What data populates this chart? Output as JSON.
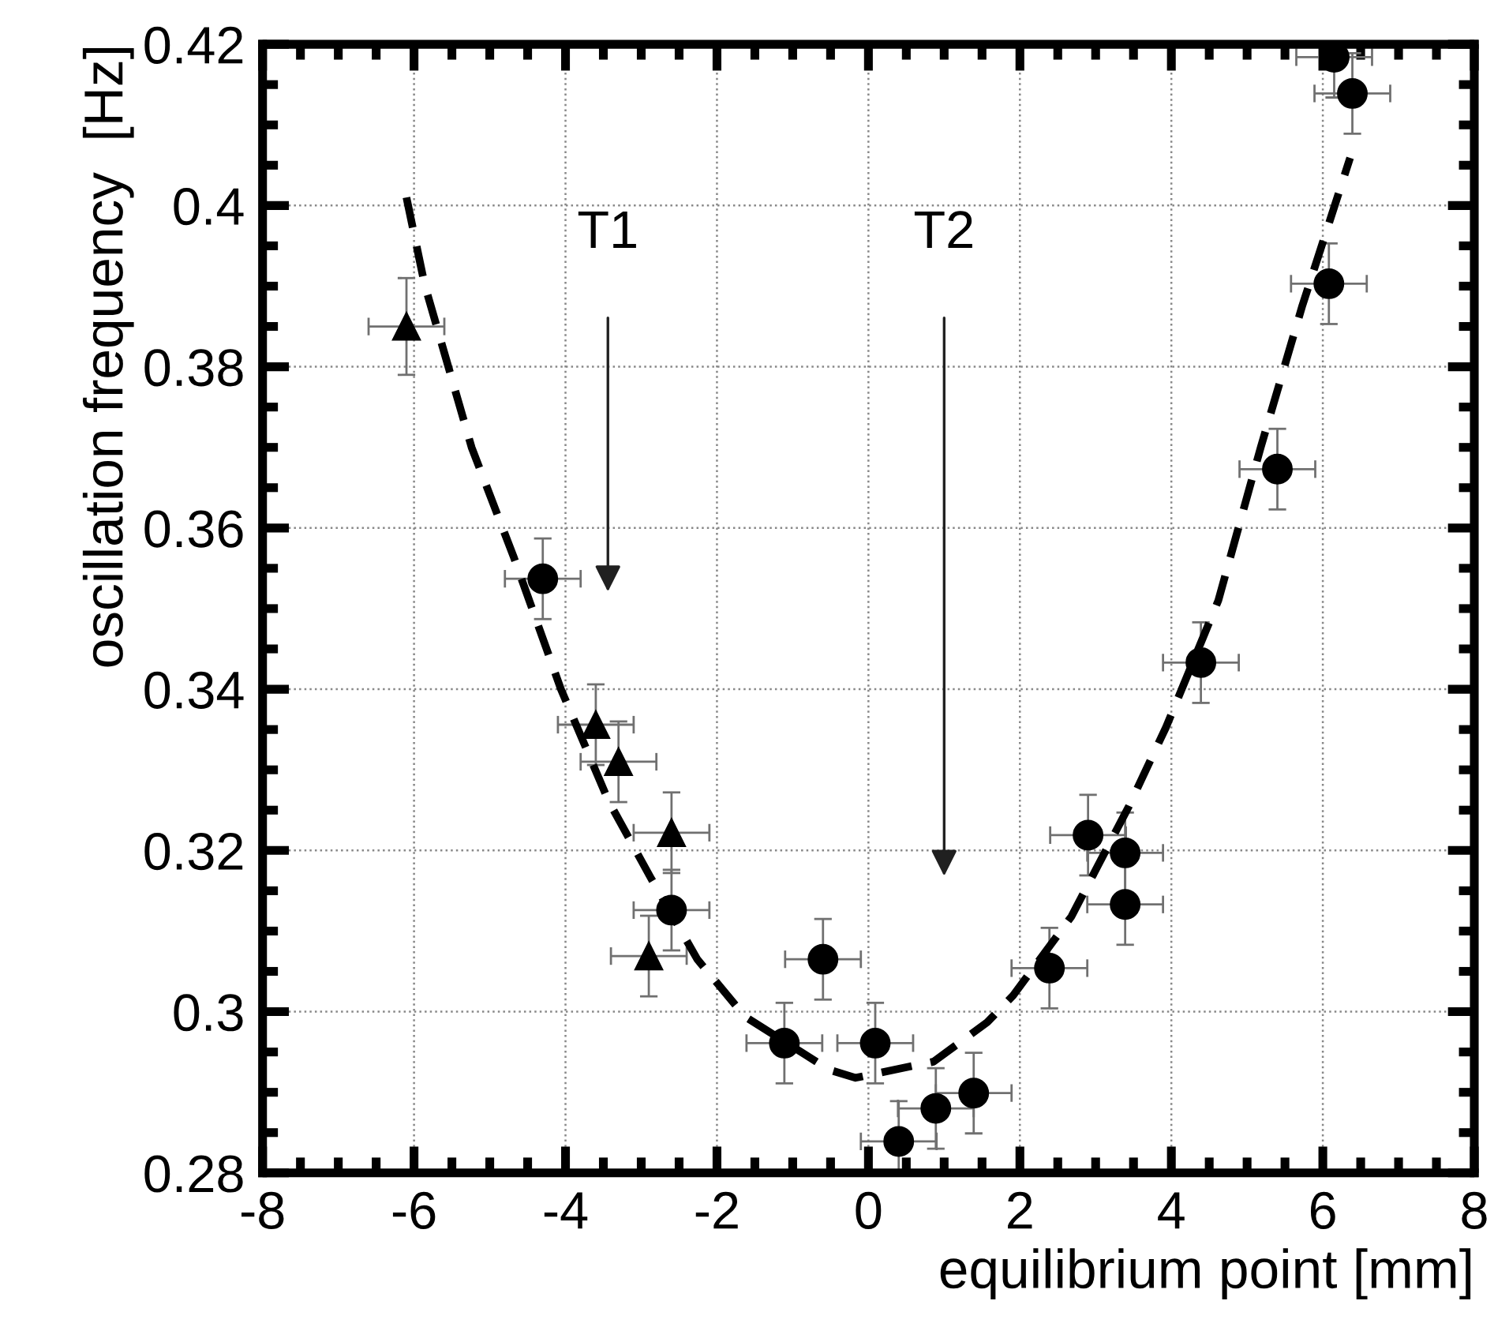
{
  "chart_data": {
    "type": "scatter",
    "xlabel": "equilibrium point [mm]",
    "ylabel": "oscillation frequency  [Hz]",
    "xlim": [
      -8,
      8
    ],
    "xticks": [
      -8,
      -6,
      -4,
      -2,
      0,
      2,
      4,
      6,
      8
    ],
    "ylim": [
      0.28,
      0.42
    ],
    "yticks": [
      0.28,
      {
        "value": 0.3,
        "label": "0.3"
      },
      0.32,
      0.34,
      0.36,
      0.38,
      {
        "value": 0.4,
        "label": "0.4"
      },
      0.42
    ],
    "grid": true,
    "series": [
      {
        "marker": "triangle",
        "color": "#000000",
        "x": [
          -6.1,
          -3.6,
          -3.3,
          -2.6,
          -2.9
        ],
        "values": [
          0.385,
          0.3356,
          0.331,
          0.3222,
          0.3069
        ],
        "errors": [
          0.006,
          0.005,
          0.005,
          0.005,
          0.005
        ],
        "xerrors": [
          0.5,
          0.5,
          0.5,
          0.5,
          0.5
        ]
      },
      {
        "marker": "circle",
        "color": "#000000",
        "x": [
          -4.3,
          -2.6,
          -0.6,
          -1.11,
          0.09,
          0.4,
          0.89,
          1.39,
          2.39,
          2.9,
          3.39,
          3.39,
          4.39,
          5.4,
          6.08,
          6.15,
          6.39
        ],
        "values": [
          0.3537,
          0.3126,
          0.3065,
          0.2961,
          0.2961,
          0.2839,
          0.288,
          0.2899,
          0.3054,
          0.3219,
          0.3197,
          0.3133,
          0.3433,
          0.3673,
          0.3903,
          0.4184,
          0.4139
        ],
        "errors": [
          0.005,
          0.005,
          0.005,
          0.005,
          0.005,
          0.005,
          0.005,
          0.005,
          0.005,
          0.005,
          0.005,
          0.005,
          0.005,
          0.005,
          0.005,
          0.005,
          0.005
        ],
        "xerrors": [
          0.5,
          0.5,
          0.5,
          0.5,
          0.5,
          0.5,
          0.5,
          0.5,
          0.5,
          0.5,
          0.5,
          0.5,
          0.5,
          0.5,
          0.5,
          0.5,
          0.5
        ]
      },
      {
        "type": "line",
        "marker": "none",
        "line_style": "dashed",
        "color": "#000000",
        "x": [
          -6.1,
          -5.86,
          -5.24,
          -4.68,
          -4.06,
          -3.43,
          -2.88,
          -2.26,
          -1.63,
          -0.52,
          -0.17,
          0.86,
          1.57,
          1.91,
          2.68,
          3.44,
          3.93,
          4.62,
          5.18,
          5.73,
          6.36
        ],
        "values": [
          0.401,
          0.3902,
          0.37,
          0.3563,
          0.34,
          0.3261,
          0.3167,
          0.3065,
          0.2994,
          0.2928,
          0.2918,
          0.2938,
          0.2987,
          0.302,
          0.3118,
          0.3255,
          0.3353,
          0.351,
          0.37,
          0.3876,
          0.4059
        ]
      }
    ],
    "annotations": [
      "T1",
      "T2"
    ]
  }
}
